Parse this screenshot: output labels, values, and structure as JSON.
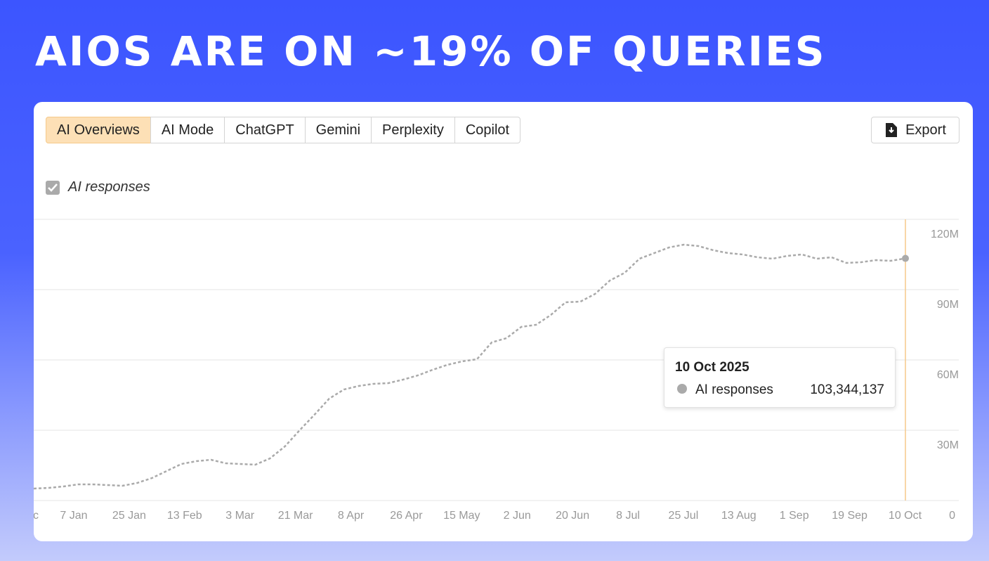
{
  "headline": "AIOS ARE ON ~19% OF QUERIES",
  "tabs": [
    "AI Overviews",
    "AI Mode",
    "ChatGPT",
    "Gemini",
    "Perplexity",
    "Copilot"
  ],
  "export": "Export",
  "tooltip": {
    "date": "10 Oct 2025",
    "series": "AI responses",
    "value": "103,344,137"
  },
  "chart_data": {
    "type": "line",
    "x_labels": [
      "c",
      "7 Jan",
      "25 Jan",
      "13 Feb",
      "3 Mar",
      "21 Mar",
      "8 Apr",
      "26 Apr",
      "15 May",
      "2 Jun",
      "20 Jun",
      "8 Jul",
      "25 Jul",
      "13 Aug",
      "1 Sep",
      "19 Sep",
      "10 Oct"
    ],
    "series": [
      {
        "name": "AI responses",
        "color": "#aaaaaa",
        "values": [
          5.1,
          5.4,
          6,
          6.9,
          6.9,
          6.6,
          6.3,
          7.5,
          9.6,
          12.6,
          15.6,
          16.8,
          17.4,
          15.9,
          15.6,
          15.3,
          18,
          23.1,
          30,
          36.6,
          43.5,
          47.4,
          48.9,
          49.8,
          50.1,
          51.6,
          53.4,
          55.8,
          57.9,
          59.4,
          60.3,
          67.5,
          69.3,
          74.1,
          75,
          79.2,
          84.6,
          84.9,
          88.2,
          93.9,
          97.2,
          103.2,
          105.6,
          108,
          109.2,
          108.6,
          106.8,
          105.6,
          105,
          103.8,
          103.2,
          104.4,
          105,
          103.2,
          103.8,
          101.4,
          101.7,
          102.6,
          102.3,
          103.34
        ]
      }
    ],
    "ylim": [
      0,
      120
    ],
    "yticks": [
      0,
      {
        "value": 30,
        "label": "30M"
      },
      {
        "value": 60,
        "label": "60M"
      },
      {
        "value": 90,
        "label": "90M"
      },
      {
        "value": 120,
        "label": "120M"
      }
    ],
    "grid": true
  }
}
